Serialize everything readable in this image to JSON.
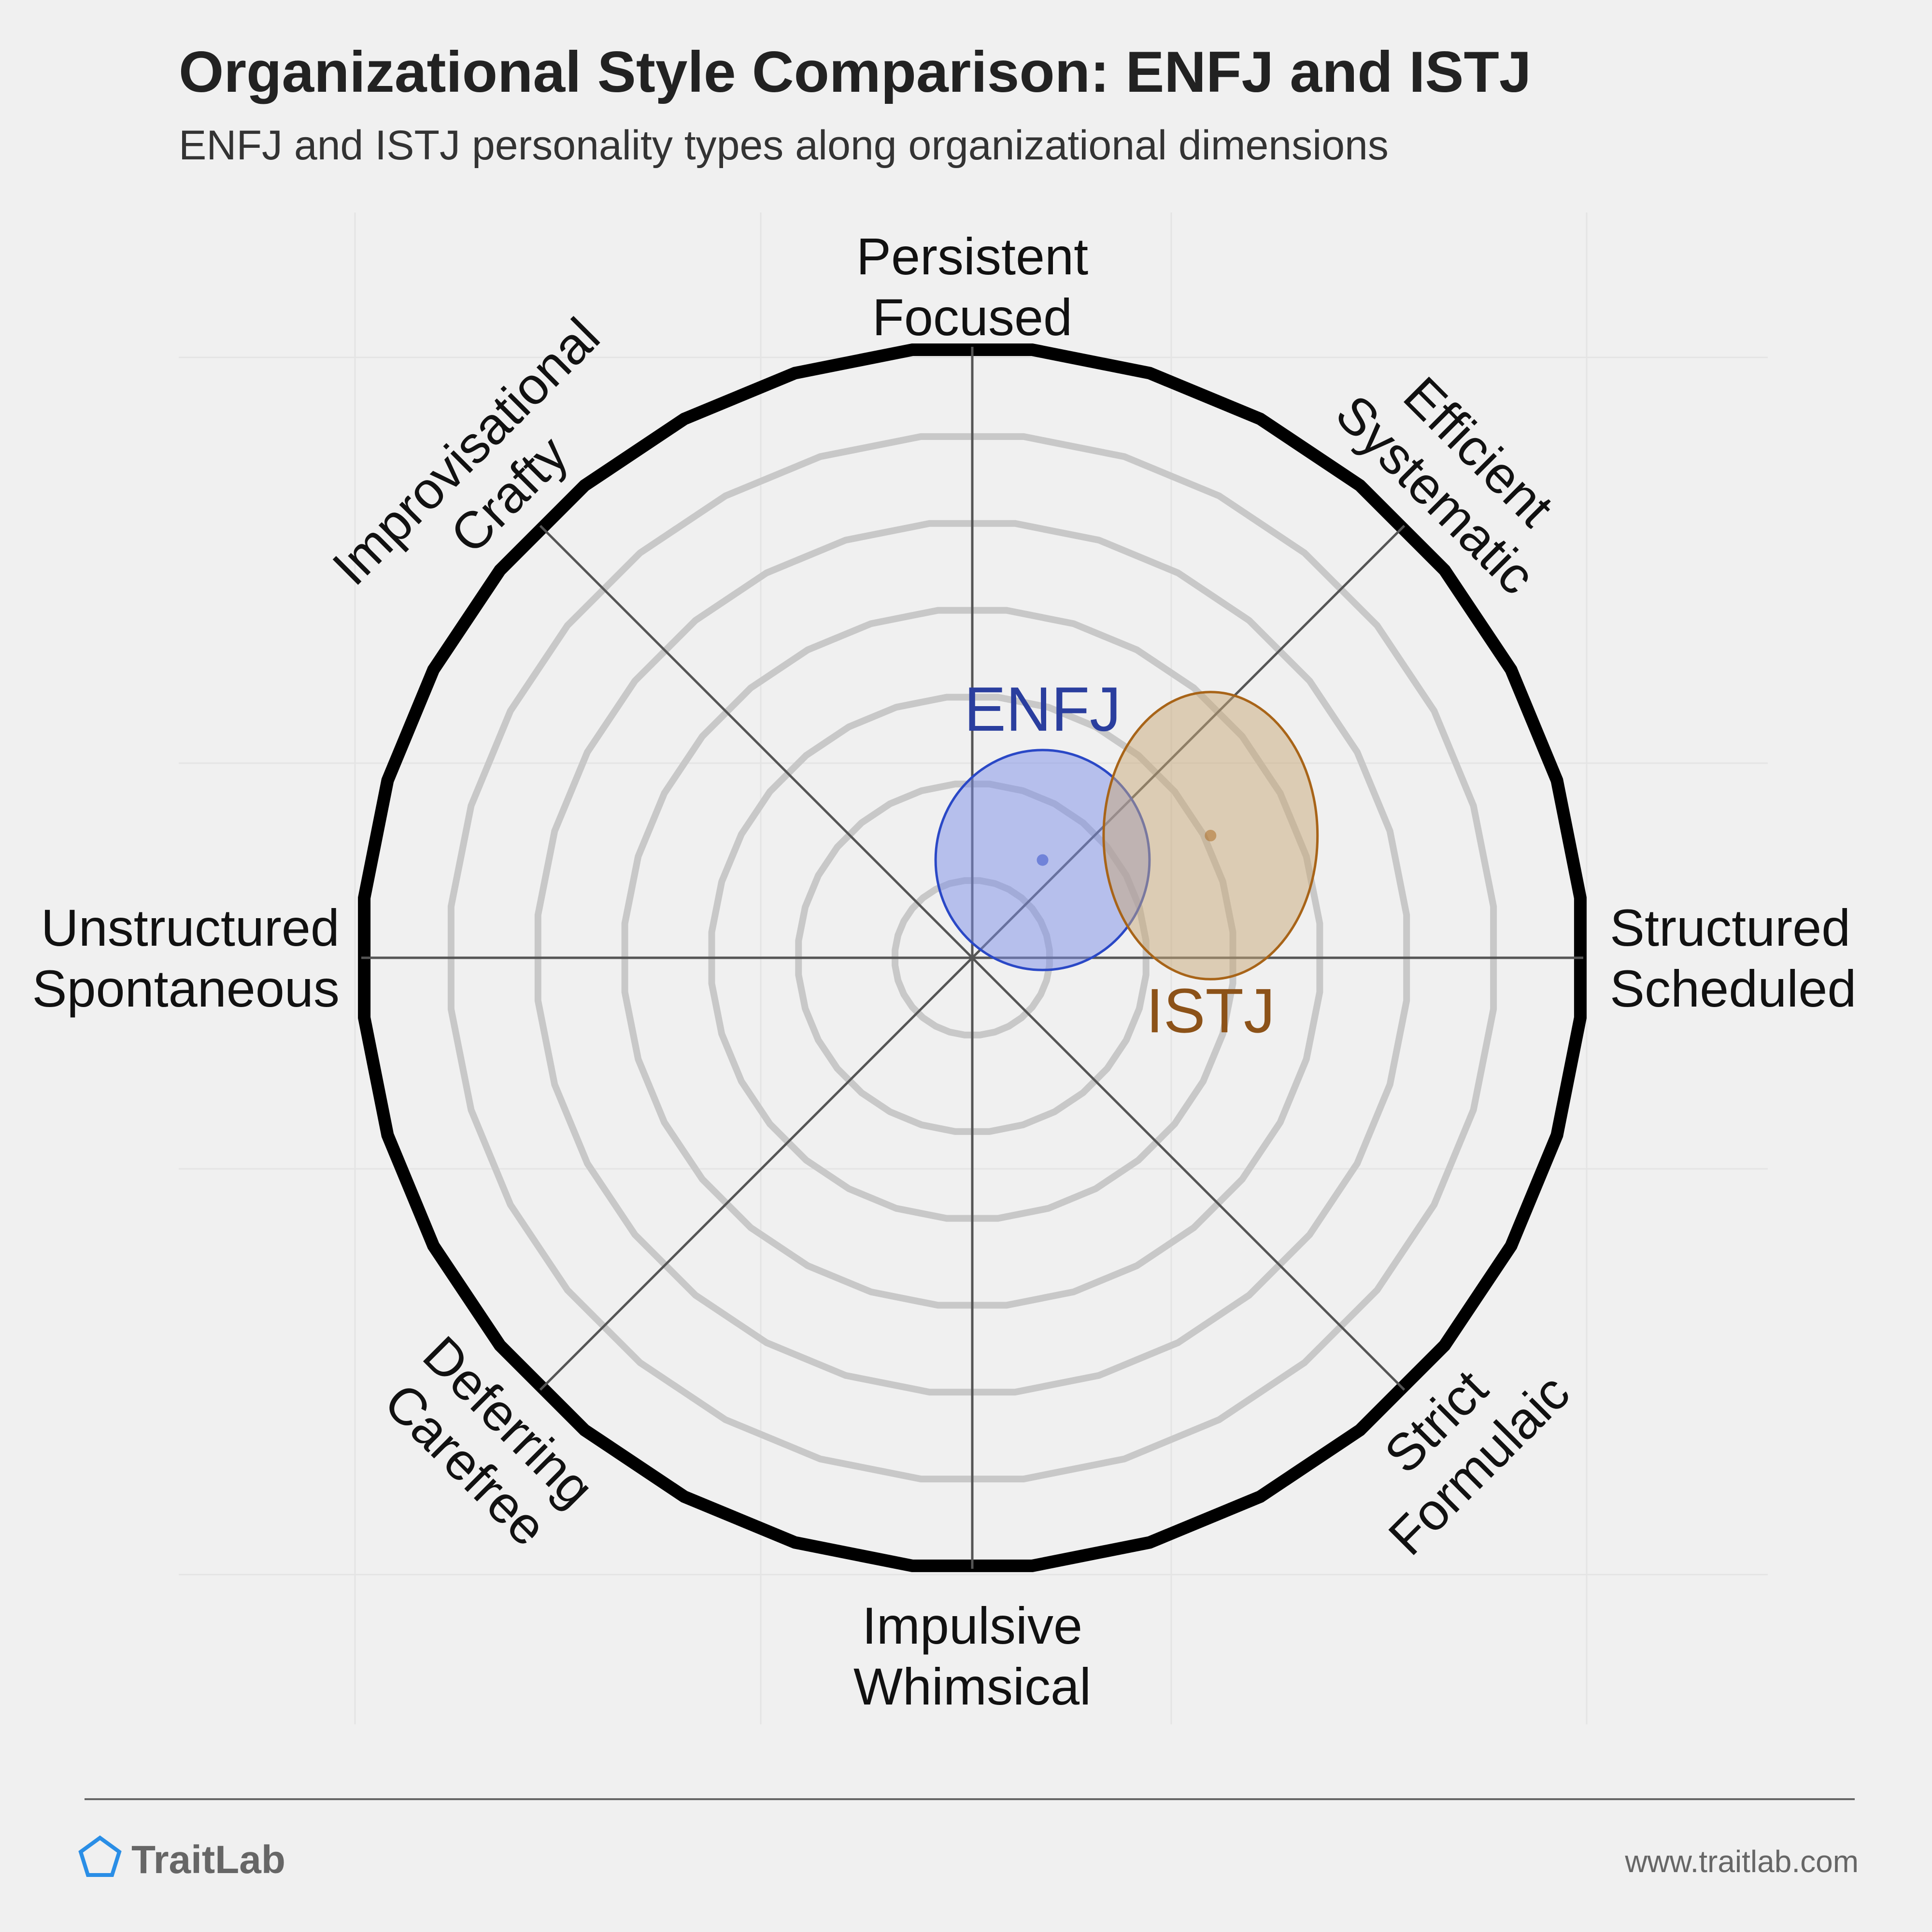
{
  "header": {
    "title": "Organizational Style Comparison: ENFJ and ISTJ",
    "subtitle": "ENFJ and ISTJ personality types along organizational dimensions"
  },
  "footer": {
    "brand": "TraitLab",
    "url": "www.traitlab.com",
    "logo_icon": "pentagon-icon"
  },
  "colors": {
    "background": "#f0f0f0",
    "ring": "#c8c8c8",
    "axis": "#555555",
    "outer_ring": "#000000",
    "enfj_fill": "#7b8ee8",
    "enfj_stroke": "#2a48c6",
    "enfj_label": "#2a3e9e",
    "istj_fill": "#c8a878",
    "istj_stroke": "#a86418",
    "istj_label": "#8c5218"
  },
  "chart_data": {
    "type": "radial-scatter",
    "axis_range": [
      0,
      100
    ],
    "ring_count": 6,
    "axes": [
      {
        "angle_deg": 90,
        "lines": [
          "Persistent",
          "Focused"
        ]
      },
      {
        "angle_deg": 45,
        "lines": [
          "Efficient",
          "Systematic"
        ]
      },
      {
        "angle_deg": 0,
        "lines": [
          "Structured",
          "Scheduled"
        ]
      },
      {
        "angle_deg": -45,
        "lines": [
          "Strict",
          "Formulaic"
        ]
      },
      {
        "angle_deg": -90,
        "lines": [
          "Impulsive",
          "Whimsical"
        ]
      },
      {
        "angle_deg": -135,
        "lines": [
          "Deferring",
          "Carefree"
        ]
      },
      {
        "angle_deg": 180,
        "lines": [
          "Unstructured",
          "Spontaneous"
        ]
      },
      {
        "angle_deg": 135,
        "lines": [
          "Improvisational",
          "Crafty"
        ]
      }
    ],
    "series": [
      {
        "name": "ENFJ",
        "x": 11.5,
        "y": 16,
        "spread_x": 35,
        "spread_y": 36
      },
      {
        "name": "ISTJ",
        "x": 39,
        "y": 20,
        "spread_x": 35,
        "spread_y": 47
      }
    ]
  }
}
